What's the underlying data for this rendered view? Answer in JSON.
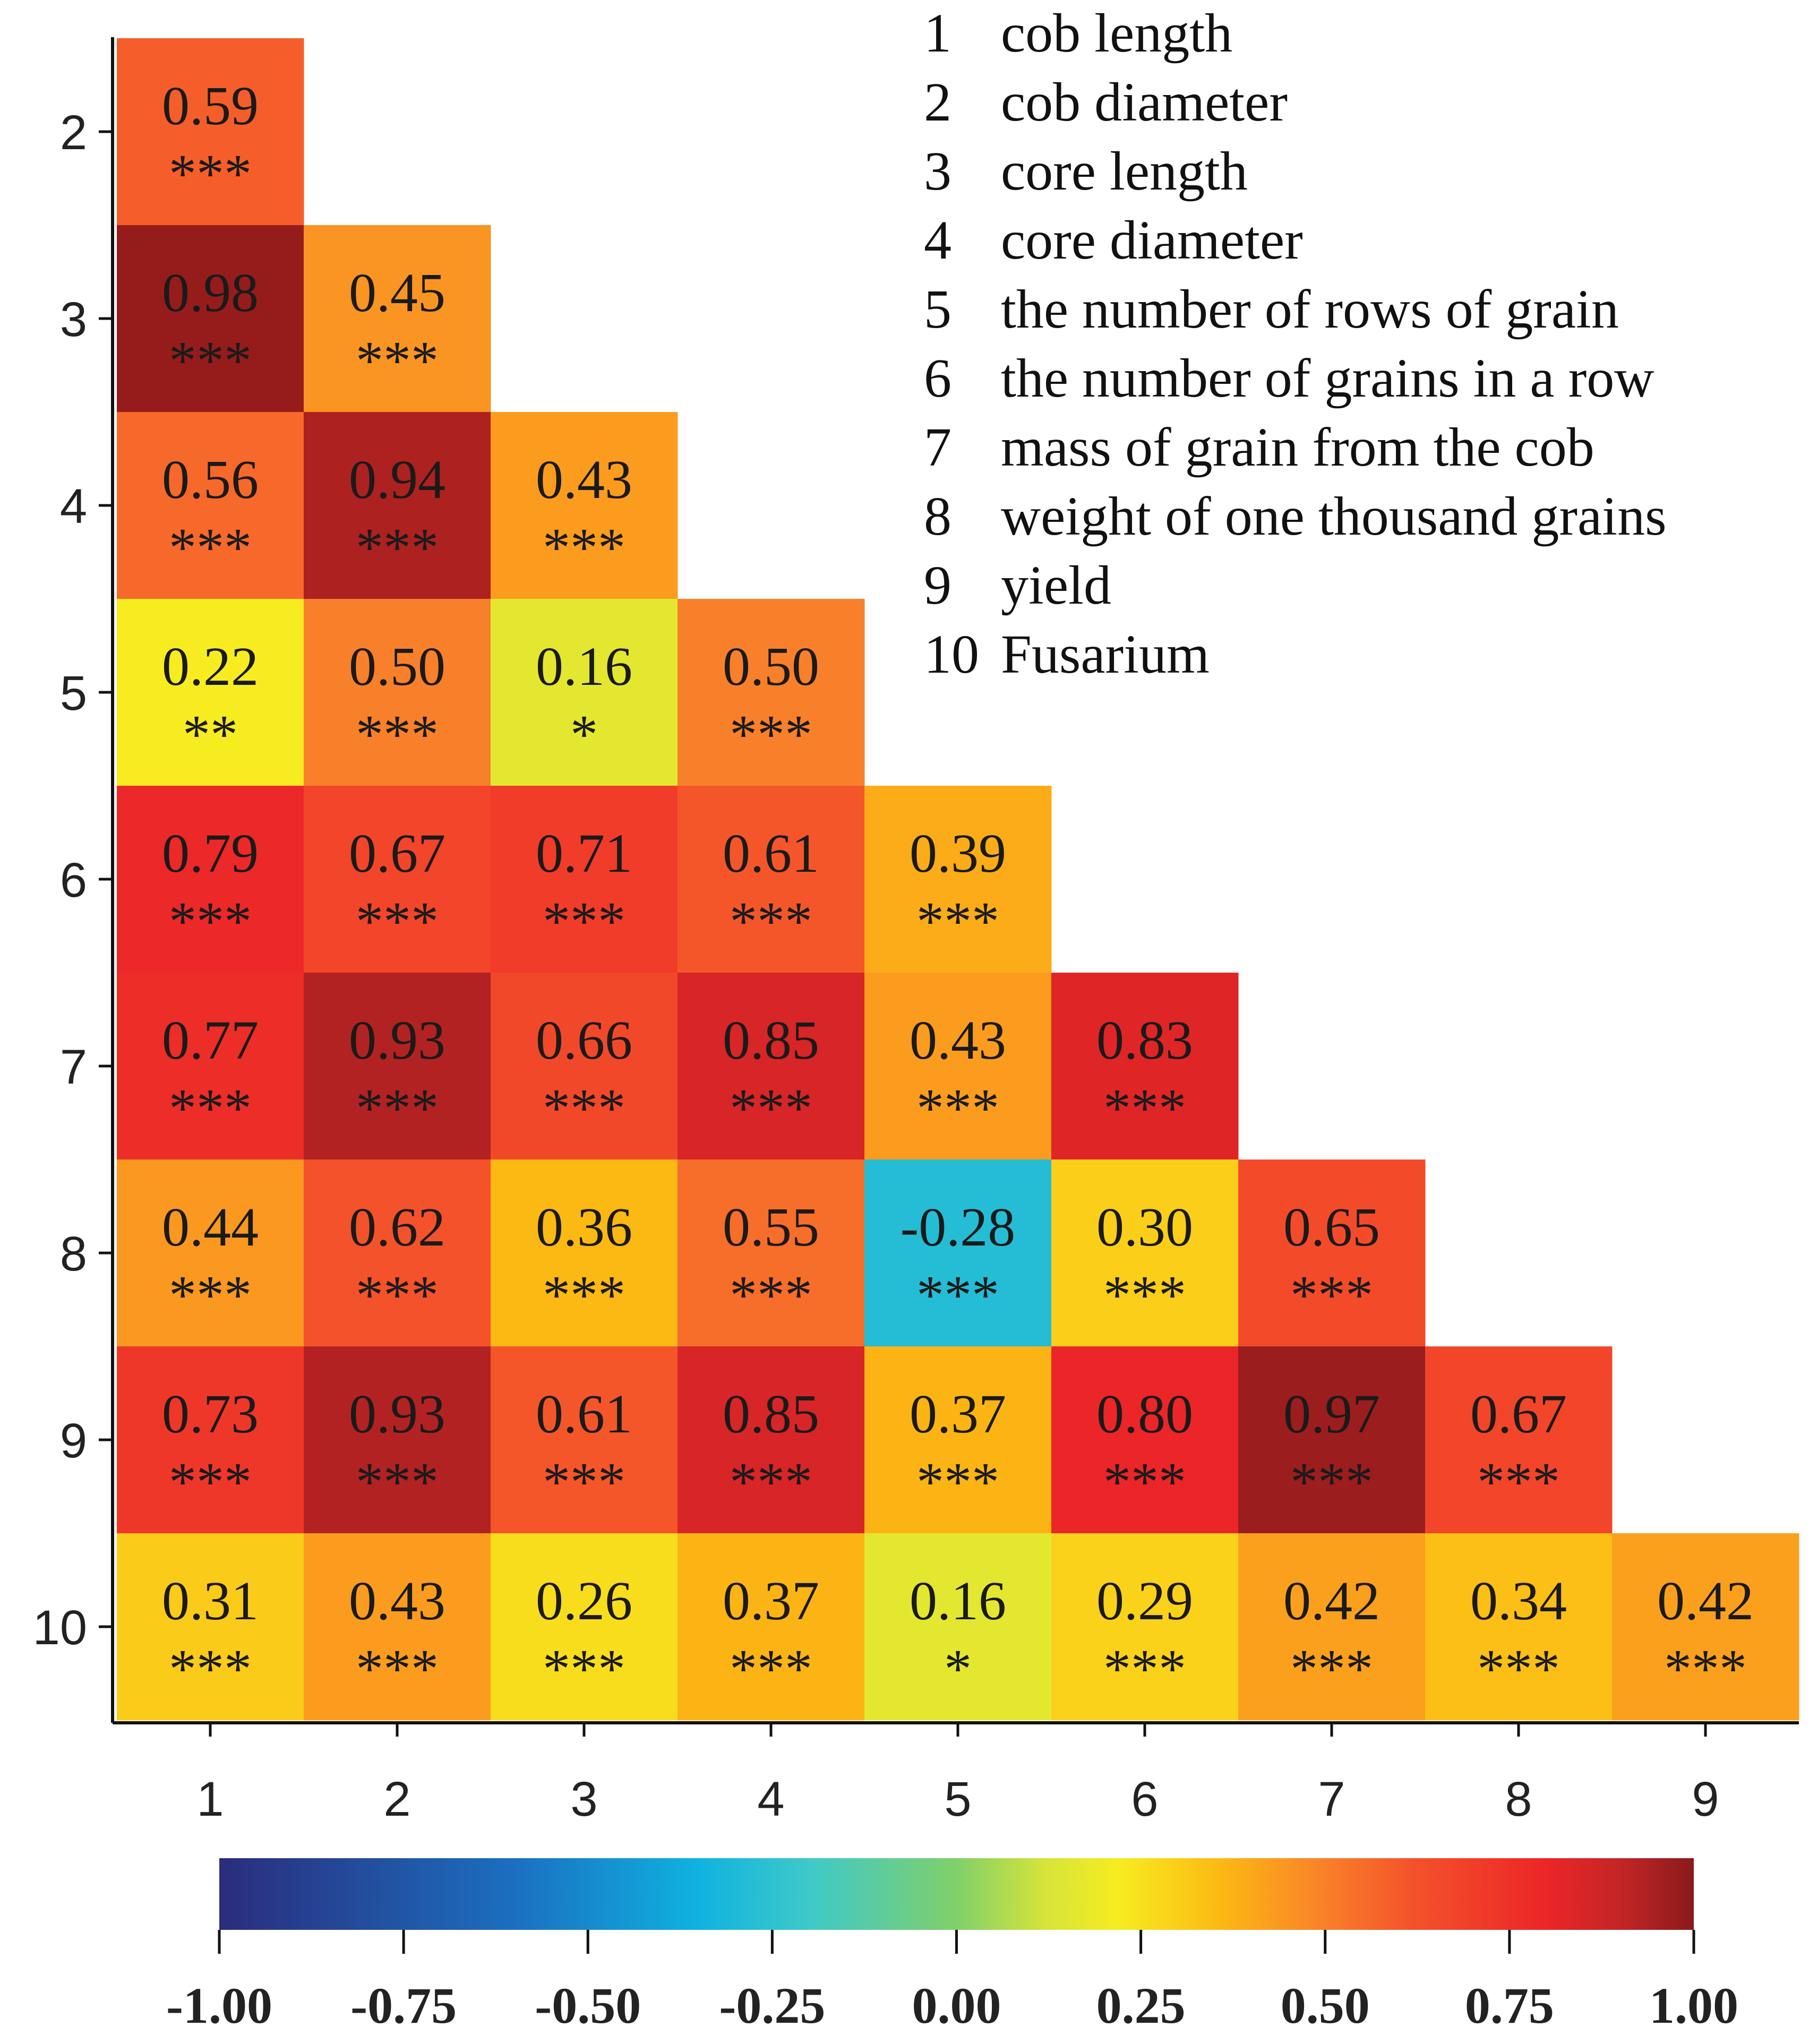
{
  "chart_data": {
    "type": "heatmap",
    "title": "",
    "x_tick_labels": [
      "1",
      "2",
      "3",
      "4",
      "5",
      "6",
      "7",
      "8",
      "9"
    ],
    "y_tick_labels": [
      "2",
      "3",
      "4",
      "5",
      "6",
      "7",
      "8",
      "9",
      "10"
    ],
    "legend": [
      {
        "num": "1",
        "label": "cob length"
      },
      {
        "num": "2",
        "label": "cob diameter"
      },
      {
        "num": "3",
        "label": "core length"
      },
      {
        "num": "4",
        "label": "core diameter"
      },
      {
        "num": "5",
        "label": "the number of rows of grain"
      },
      {
        "num": "6",
        "label": "the number of grains in a row"
      },
      {
        "num": "7",
        "label": "mass of grain from the cob"
      },
      {
        "num": "8",
        "label": "weight of one thousand grains"
      },
      {
        "num": "9",
        "label": "yield"
      },
      {
        "num": "10",
        "label": "Fusarium"
      }
    ],
    "rows": [
      {
        "cells": [
          {
            "value": "0.59",
            "sig": "***"
          }
        ]
      },
      {
        "cells": [
          {
            "value": "0.98",
            "sig": "***"
          },
          {
            "value": "0.45",
            "sig": "***"
          }
        ]
      },
      {
        "cells": [
          {
            "value": "0.56",
            "sig": "***"
          },
          {
            "value": "0.94",
            "sig": "***"
          },
          {
            "value": "0.43",
            "sig": "***"
          }
        ]
      },
      {
        "cells": [
          {
            "value": "0.22",
            "sig": "**"
          },
          {
            "value": "0.50",
            "sig": "***"
          },
          {
            "value": "0.16",
            "sig": "*"
          },
          {
            "value": "0.50",
            "sig": "***"
          }
        ]
      },
      {
        "cells": [
          {
            "value": "0.79",
            "sig": "***"
          },
          {
            "value": "0.67",
            "sig": "***"
          },
          {
            "value": "0.71",
            "sig": "***"
          },
          {
            "value": "0.61",
            "sig": "***"
          },
          {
            "value": "0.39",
            "sig": "***"
          }
        ]
      },
      {
        "cells": [
          {
            "value": "0.77",
            "sig": "***"
          },
          {
            "value": "0.93",
            "sig": "***"
          },
          {
            "value": "0.66",
            "sig": "***"
          },
          {
            "value": "0.85",
            "sig": "***"
          },
          {
            "value": "0.43",
            "sig": "***"
          },
          {
            "value": "0.83",
            "sig": "***"
          }
        ]
      },
      {
        "cells": [
          {
            "value": "0.44",
            "sig": "***"
          },
          {
            "value": "0.62",
            "sig": "***"
          },
          {
            "value": "0.36",
            "sig": "***"
          },
          {
            "value": "0.55",
            "sig": "***"
          },
          {
            "value": "-0.28",
            "sig": "***"
          },
          {
            "value": "0.30",
            "sig": "***"
          },
          {
            "value": "0.65",
            "sig": "***"
          }
        ]
      },
      {
        "cells": [
          {
            "value": "0.73",
            "sig": "***"
          },
          {
            "value": "0.93",
            "sig": "***"
          },
          {
            "value": "0.61",
            "sig": "***"
          },
          {
            "value": "0.85",
            "sig": "***"
          },
          {
            "value": "0.37",
            "sig": "***"
          },
          {
            "value": "0.80",
            "sig": "***"
          },
          {
            "value": "0.97",
            "sig": "***"
          },
          {
            "value": "0.67",
            "sig": "***"
          }
        ]
      },
      {
        "cells": [
          {
            "value": "0.31",
            "sig": "***"
          },
          {
            "value": "0.43",
            "sig": "***"
          },
          {
            "value": "0.26",
            "sig": "***"
          },
          {
            "value": "0.37",
            "sig": "***"
          },
          {
            "value": "0.16",
            "sig": "*"
          },
          {
            "value": "0.29",
            "sig": "***"
          },
          {
            "value": "0.42",
            "sig": "***"
          },
          {
            "value": "0.34",
            "sig": "***"
          },
          {
            "value": "0.42",
            "sig": "***"
          }
        ]
      }
    ],
    "colorbar": {
      "range": [
        -1.0,
        1.0
      ],
      "ticks": [
        "-1.00",
        "-0.75",
        "-0.50",
        "-0.25",
        "0.00",
        "0.25",
        "0.50",
        "0.75",
        "1.00"
      ],
      "stops": [
        {
          "v": -1.0,
          "color": "#2b2c7c"
        },
        {
          "v": -0.6,
          "color": "#1b6fc0"
        },
        {
          "v": -0.35,
          "color": "#0fb2e0"
        },
        {
          "v": -0.2,
          "color": "#3ec9c9"
        },
        {
          "v": 0.0,
          "color": "#80d06a"
        },
        {
          "v": 0.12,
          "color": "#d6e43a"
        },
        {
          "v": 0.22,
          "color": "#f7ec20"
        },
        {
          "v": 0.36,
          "color": "#fcb813"
        },
        {
          "v": 0.5,
          "color": "#f9802a"
        },
        {
          "v": 0.62,
          "color": "#f4522a"
        },
        {
          "v": 0.8,
          "color": "#ec2528"
        },
        {
          "v": 0.9,
          "color": "#c42526"
        },
        {
          "v": 1.0,
          "color": "#8b1a1a"
        }
      ]
    }
  }
}
